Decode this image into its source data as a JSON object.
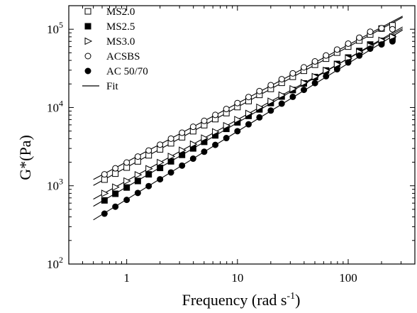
{
  "chart_data": {
    "type": "scatter",
    "xlabel": "Frequency (rad s",
    "xlabel_sup": "-1",
    "xlabel_end": ")",
    "ylabel": "G*(Pa)",
    "x_scale": "log",
    "y_scale": "log",
    "xlim": [
      0.3,
      400
    ],
    "ylim": [
      100,
      200000
    ],
    "x_ticks": [
      {
        "value": 1,
        "label": "1"
      },
      {
        "value": 10,
        "label": "10"
      },
      {
        "value": 100,
        "label": "100"
      }
    ],
    "y_ticks": [
      {
        "value": 100,
        "base": "10",
        "exp": "2"
      },
      {
        "value": 1000,
        "base": "10",
        "exp": "3"
      },
      {
        "value": 10000,
        "base": "10",
        "exp": "4"
      },
      {
        "value": 100000,
        "base": "10",
        "exp": "5"
      }
    ],
    "grid": false,
    "legend_position": "top-left",
    "fit_label": "Fit",
    "x": [
      0.63,
      0.79,
      1.0,
      1.26,
      1.58,
      2.0,
      2.51,
      3.16,
      3.98,
      5.01,
      6.31,
      7.94,
      10.0,
      12.6,
      15.8,
      20.0,
      25.1,
      31.6,
      39.8,
      50.1,
      63.1,
      79.4,
      100,
      126,
      158,
      200,
      251
    ],
    "series": [
      {
        "name": "MS2.0",
        "marker": "open-square",
        "values": [
          1200,
          1430,
          1710,
          2050,
          2450,
          2920,
          3490,
          4170,
          4980,
          5950,
          7110,
          8490,
          10140,
          12100,
          14500,
          17300,
          20700,
          24700,
          29500,
          35200,
          42100,
          50300,
          60000,
          71700,
          85700,
          102000,
          112000
        ],
        "fit_start": 0.5,
        "fit_end": 310
      },
      {
        "name": "MS2.5",
        "marker": "filled-square",
        "values": [
          650,
          790,
          950,
          1150,
          1400,
          1690,
          2050,
          2480,
          3000,
          3640,
          4400,
          5330,
          6450,
          7810,
          9450,
          11400,
          13800,
          16700,
          20300,
          24500,
          29700,
          36000,
          43500,
          52700,
          63800,
          71000,
          78000
        ],
        "fit_start": 0.5,
        "fit_end": 310
      },
      {
        "name": "MS3.0",
        "marker": "open-triangle",
        "values": [
          800,
          960,
          1150,
          1380,
          1650,
          1980,
          2370,
          2840,
          3400,
          4070,
          4880,
          5850,
          7000,
          8390,
          10050,
          12000,
          14400,
          17300,
          20700,
          24800,
          29700,
          35600,
          42600,
          51000,
          61100,
          72000,
          80000
        ],
        "fit_start": 0.5,
        "fit_end": 310
      },
      {
        "name": "ACSBS",
        "marker": "open-circle",
        "values": [
          1400,
          1670,
          1980,
          2360,
          2820,
          3350,
          4000,
          4760,
          5670,
          6750,
          8040,
          9570,
          11400,
          13600,
          16200,
          19300,
          23000,
          27300,
          32600,
          38800,
          46200,
          55000,
          65500,
          78000,
          92900,
          103000,
          100000
        ],
        "fit_start": 0.5,
        "fit_end": 310
      },
      {
        "name": "AC 50/70",
        "marker": "filled-circle",
        "values": [
          440,
          540,
          660,
          810,
          990,
          1210,
          1480,
          1810,
          2220,
          2720,
          3330,
          4070,
          4980,
          6100,
          7470,
          9140,
          11200,
          13700,
          16800,
          20500,
          25100,
          30800,
          37600,
          46100,
          56400,
          64000,
          70000
        ],
        "fit_start": 0.5,
        "fit_end": 310
      }
    ]
  }
}
